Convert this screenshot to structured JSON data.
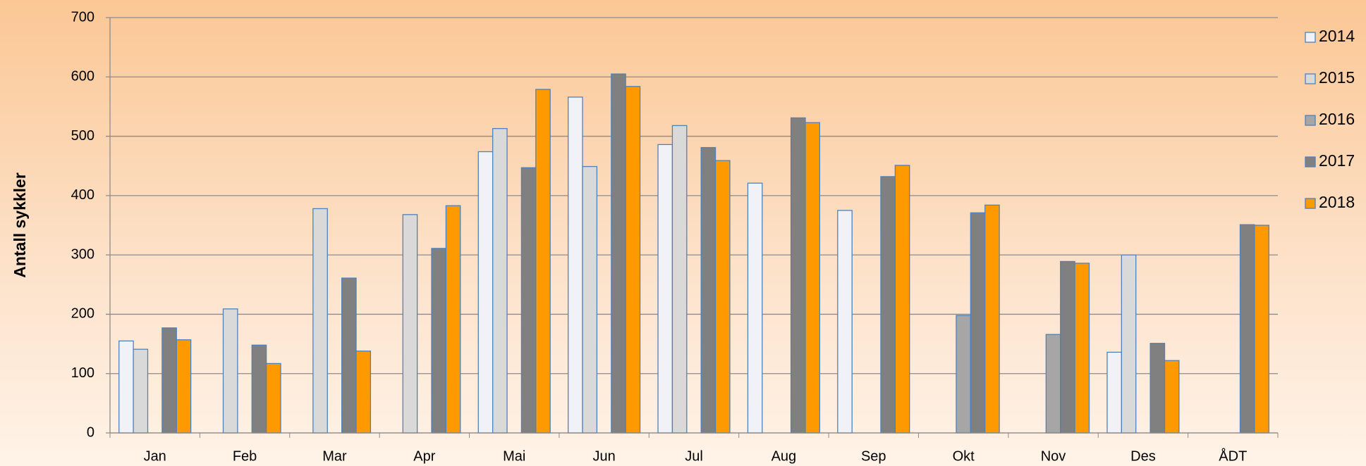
{
  "chart_data": {
    "type": "bar",
    "y_label": "Antall sykkler",
    "categories": [
      "Jan",
      "Feb",
      "Mar",
      "Apr",
      "Mai",
      "Jun",
      "Jul",
      "Aug",
      "Sep",
      "Okt",
      "Nov",
      "Des",
      "ÅDT"
    ],
    "series": [
      {
        "name": "2014",
        "color": "#f0f2f7",
        "values": [
          155,
          null,
          null,
          null,
          474,
          566,
          486,
          421,
          375,
          null,
          null,
          136,
          null
        ]
      },
      {
        "name": "2015",
        "color": "#d9d9d9",
        "values": [
          141,
          209,
          378,
          368,
          513,
          449,
          518,
          null,
          null,
          null,
          null,
          300,
          null
        ]
      },
      {
        "name": "2016",
        "color": "#a6a6a6",
        "values": [
          null,
          null,
          null,
          null,
          null,
          null,
          null,
          null,
          null,
          198,
          166,
          null,
          null
        ]
      },
      {
        "name": "2017",
        "color": "#808080",
        "values": [
          177,
          148,
          261,
          311,
          447,
          605,
          481,
          531,
          432,
          371,
          289,
          151,
          351
        ]
      },
      {
        "name": "2018",
        "color": "#ff9900",
        "values": [
          157,
          117,
          138,
          383,
          579,
          584,
          459,
          523,
          451,
          384,
          286,
          122,
          350
        ]
      }
    ],
    "ylim": [
      0,
      700
    ],
    "yticks": [
      0,
      100,
      200,
      300,
      400,
      500,
      600,
      700
    ],
    "grid": true,
    "legend": "right",
    "bar_stroke": "#4f81bd"
  }
}
